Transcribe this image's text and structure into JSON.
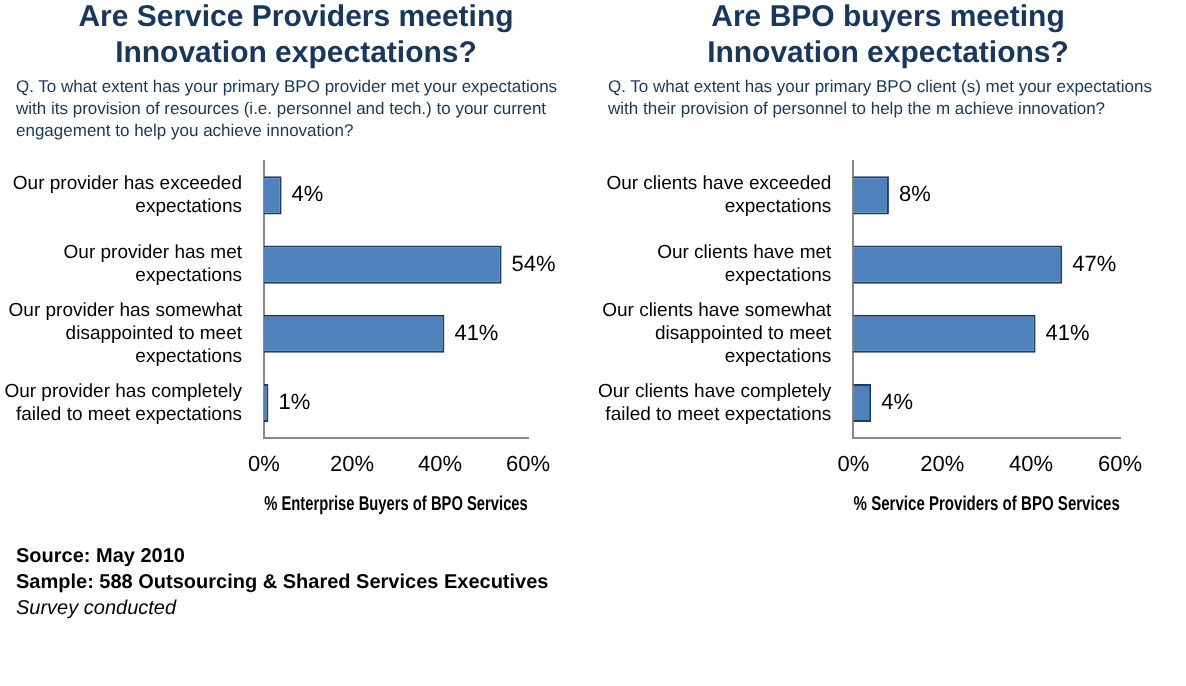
{
  "chart_data": [
    {
      "type": "bar",
      "orientation": "horizontal",
      "title": "Are Service Providers meeting Innovation expectations?",
      "subtitle": "Q.  To what extent has your primary BPO provider met your expectations with its provision of resources (i.e. personnel and tech.) to your current engagement to help you achieve innovation?",
      "xlabel": "% Enterprise Buyers of BPO Services",
      "categories": [
        "Our provider has exceeded expectations",
        "Our provider has met expectations",
        "Our provider has somewhat disappointed to meet expectations",
        "Our provider has completely failed to meet expectations"
      ],
      "values": [
        4,
        54,
        41,
        1
      ],
      "value_labels": [
        "4%",
        "54%",
        "41%",
        "1%"
      ],
      "color": "#4f81bd",
      "xlim": [
        0,
        60
      ],
      "xticks": [
        {
          "value": 0,
          "label": "0%"
        },
        {
          "value": 20,
          "label": "20%"
        },
        {
          "value": 40,
          "label": "40%"
        },
        {
          "value": 60,
          "label": "60%"
        }
      ],
      "annotations": [
        "Source:  May 2010",
        "Sample:  588  Outsourcing & Shared Services Executives",
        "Survey conducted"
      ]
    },
    {
      "type": "bar",
      "orientation": "horizontal",
      "title": "Are BPO buyers meeting Innovation expectations?",
      "subtitle": "Q.  To what extent has your primary BPO client (s)  met your expectations with their provision of personnel to help the m achieve innovation?",
      "xlabel": "% Service Providers of BPO Services",
      "categories": [
        "Our clients have exceeded expectations",
        "Our clients have met expectations",
        "Our clients have somewhat disappointed to meet expectations",
        "Our clients have completely failed to meet expectations"
      ],
      "values": [
        8,
        47,
        41,
        4
      ],
      "value_labels": [
        "8%",
        "47%",
        "41%",
        "4%"
      ],
      "color": "#4f81bd",
      "xlim": [
        0,
        60
      ],
      "xticks": [
        {
          "value": 0,
          "label": "0%"
        },
        {
          "value": 20,
          "label": "20%"
        },
        {
          "value": 40,
          "label": "40%"
        },
        {
          "value": 60,
          "label": "60%"
        }
      ]
    }
  ]
}
